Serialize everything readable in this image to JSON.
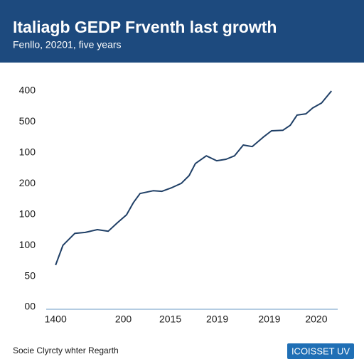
{
  "chart_data": {
    "type": "line",
    "title": "Italiagb GEDP Frventh last growth",
    "subtitle": "Fenllo, 20201, five years",
    "footer": "Socie Clyrcty whter Regarth",
    "badge": "ICOISSET UV",
    "color": "#1f3f66",
    "x": [
      0,
      0.14,
      0.37,
      0.57,
      0.8,
      1.01,
      1.19,
      1.36,
      1.49,
      1.62,
      1.87,
      2.04,
      2.23,
      2.41,
      2.56,
      2.68,
      2.89,
      3.09,
      3.27,
      3.43,
      3.6,
      3.77,
      3.98,
      4.14,
      4.36,
      4.5,
      4.63,
      4.8,
      4.93,
      5.1,
      5.29
    ],
    "values": [
      1.36,
      2.0,
      2.39,
      2.42,
      2.51,
      2.46,
      2.74,
      2.99,
      3.38,
      3.68,
      3.77,
      3.75,
      3.87,
      4.01,
      4.26,
      4.65,
      4.9,
      4.74,
      4.79,
      4.9,
      5.25,
      5.2,
      5.5,
      5.71,
      5.73,
      5.89,
      6.22,
      6.26,
      6.45,
      6.61,
      7.0
    ],
    "xlim": [
      -0.18,
      5.41
    ],
    "ylim": [
      0,
      7
    ],
    "xticks": [
      {
        "value": 0,
        "label": "1400"
      },
      {
        "value": 1.3,
        "label": "200"
      },
      {
        "value": 2.2,
        "label": "2015"
      },
      {
        "value": 3.1,
        "label": "2019"
      },
      {
        "value": 4.1,
        "label": "2019"
      },
      {
        "value": 5,
        "label": "2020"
      }
    ],
    "yticks": [
      {
        "value": 7,
        "label": "400"
      },
      {
        "value": 6,
        "label": "500"
      },
      {
        "value": 5,
        "label": "100"
      },
      {
        "value": 4,
        "label": "200"
      },
      {
        "value": 3,
        "label": "100"
      },
      {
        "value": 2,
        "label": "100"
      },
      {
        "value": 1,
        "label": "50"
      },
      {
        "value": 0,
        "label": "00"
      }
    ]
  }
}
